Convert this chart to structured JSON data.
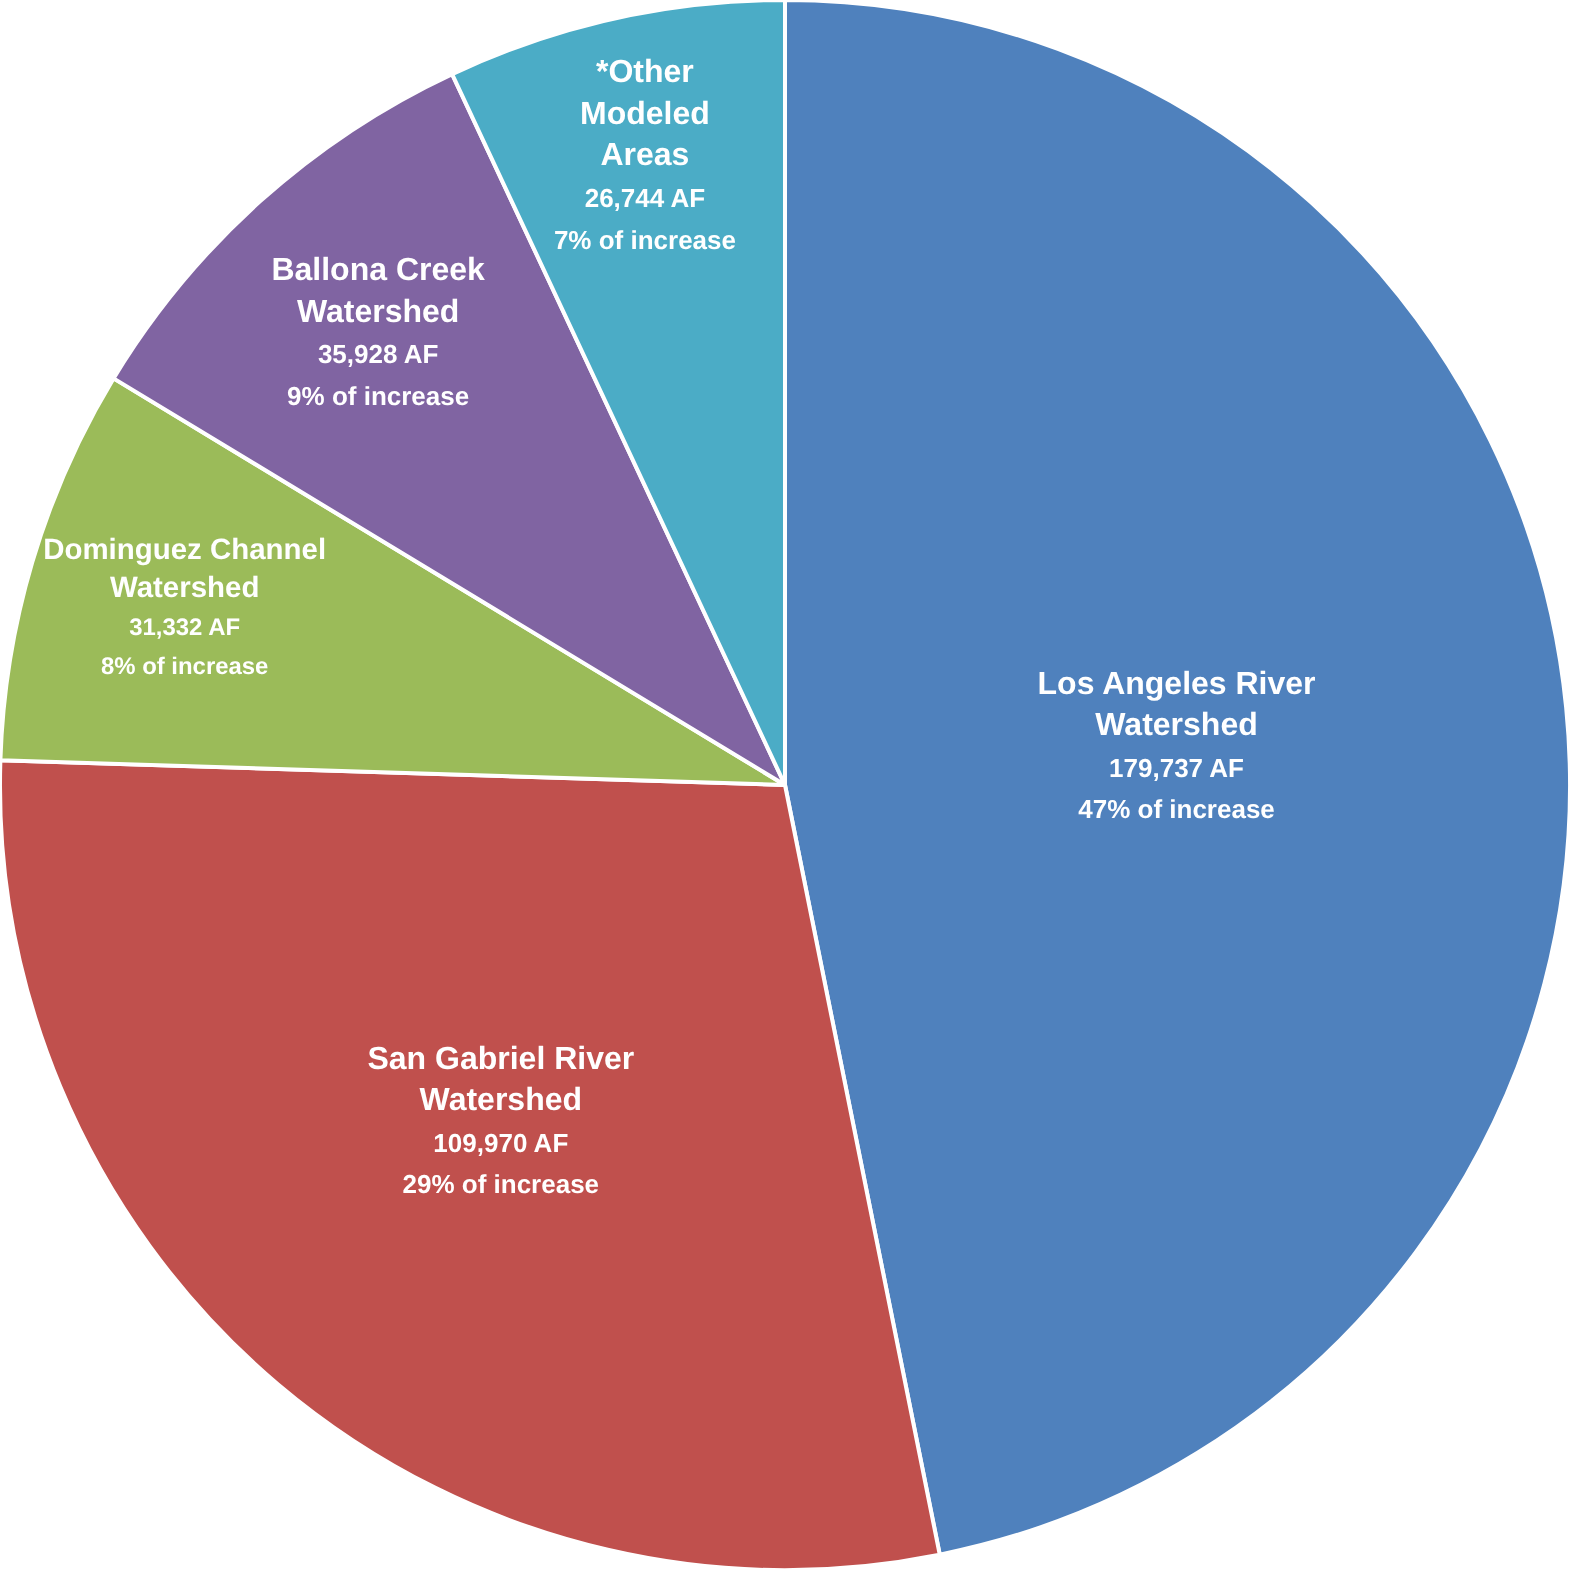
{
  "chart_data": {
    "type": "pie",
    "categories": [
      "Los Angeles River\nWatershed",
      "San Gabriel River\nWatershed",
      "Dominguez Channel\nWatershed",
      "Ballona Creek\nWatershed",
      "*Other\nModeled\nAreas"
    ],
    "values": [
      179737,
      109970,
      31332,
      35928,
      26744
    ],
    "colors": [
      "#4f81bd",
      "#c0504d",
      "#9bbb59",
      "#8064a2",
      "#4bacc6"
    ],
    "value_labels": [
      "179,737 AF\n47% of increase",
      "109,970 AF\n29% of increase",
      "31,332 AF\n8% of increase",
      "35,928 AF\n9% of increase",
      "26,744 AF\n7% of increase"
    ],
    "legend": false
  }
}
